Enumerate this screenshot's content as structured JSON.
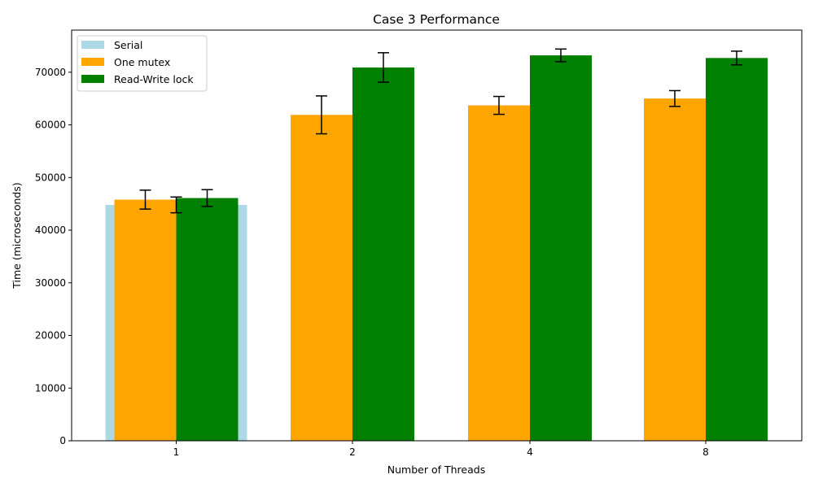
{
  "chart_data": {
    "type": "bar",
    "title": "Case 3 Performance",
    "xlabel": "Number of Threads",
    "ylabel": "Time (microseconds)",
    "categories": [
      "1",
      "2",
      "4",
      "8"
    ],
    "ylim": [
      0,
      78000
    ],
    "yticks": [
      0,
      10000,
      20000,
      30000,
      40000,
      50000,
      60000,
      70000
    ],
    "legend_position": "top-left",
    "grid": false,
    "serial": {
      "name": "Serial",
      "color": "#add8e6",
      "category": "1",
      "value": 44800
    },
    "series": [
      {
        "name": "One mutex",
        "color": "#ffa500",
        "values": [
          45800,
          61900,
          63700,
          65000
        ],
        "errors": [
          1800,
          3600,
          1700,
          1500
        ]
      },
      {
        "name": "Read-Write lock",
        "color": "#008000",
        "values": [
          46100,
          70900,
          73200,
          72700
        ],
        "errors": [
          1600,
          2800,
          1200,
          1300
        ]
      }
    ],
    "extra_error_bar": {
      "category": "1",
      "value": 44800,
      "error": 1500
    }
  }
}
